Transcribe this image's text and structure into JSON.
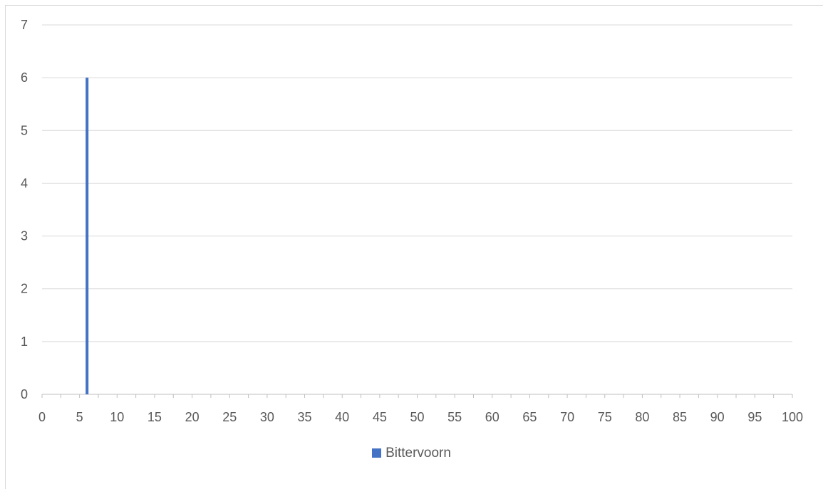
{
  "chart_data": {
    "type": "bar",
    "title": "",
    "xlabel": "",
    "ylabel": "",
    "xlim": [
      0,
      100
    ],
    "ylim": [
      0,
      7
    ],
    "x_ticks": [
      "0",
      "5",
      "10",
      "15",
      "20",
      "25",
      "30",
      "35",
      "40",
      "45",
      "50",
      "55",
      "60",
      "65",
      "70",
      "75",
      "80",
      "85",
      "90",
      "95",
      "100"
    ],
    "y_ticks": [
      "0",
      "1",
      "2",
      "3",
      "4",
      "5",
      "6",
      "7"
    ],
    "grid": true,
    "legend_position": "bottom",
    "series": [
      {
        "name": "Bittervoorn",
        "color": "#4472c4",
        "points": [
          {
            "x": 6,
            "y": 6
          }
        ]
      }
    ]
  }
}
